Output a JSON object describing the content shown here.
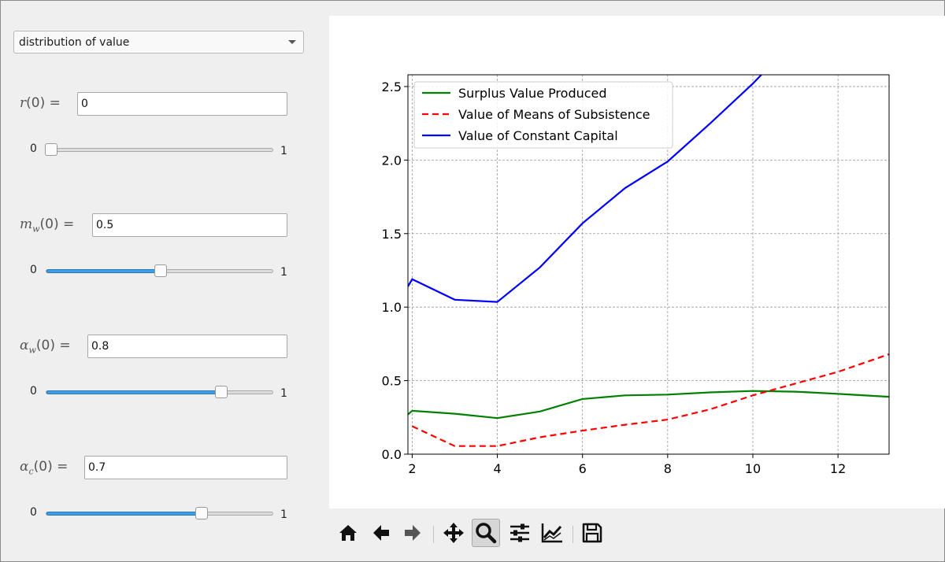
{
  "dropdown": {
    "selected": "distribution of value"
  },
  "params": [
    {
      "sym": "r",
      "sub": "",
      "suffix": "(0) =",
      "value": "0",
      "min": "0",
      "max": "1",
      "level": 0.0
    },
    {
      "sym": "m",
      "sub": "w",
      "suffix": "(0) =",
      "value": "0.5",
      "min": "0",
      "max": "1",
      "level": 0.5
    },
    {
      "sym": "α",
      "sub": "w",
      "suffix": "(0) =",
      "value": "0.8",
      "min": "0",
      "max": "1",
      "level": 0.78
    },
    {
      "sym": "α",
      "sub": "c",
      "suffix": "(0) =",
      "value": "0.7",
      "min": "0",
      "max": "1",
      "level": 0.69
    }
  ],
  "toolbar": {
    "icons": [
      "home-icon",
      "back-arrow-icon",
      "forward-arrow-icon",
      "pan-icon",
      "zoom-icon",
      "configure-subplots-icon",
      "edit-axis-icon",
      "save-icon"
    ],
    "active": "zoom-icon"
  },
  "chart_data": {
    "type": "line",
    "title": "",
    "xlabel": "",
    "ylabel": "",
    "xlim": [
      1.9,
      13.2
    ],
    "ylim": [
      0.0,
      2.58
    ],
    "xticks": [
      2,
      4,
      6,
      8,
      10,
      12
    ],
    "yticks": [
      0.0,
      0.5,
      1.0,
      1.5,
      2.0,
      2.5
    ],
    "xtick_labels": [
      "2",
      "4",
      "6",
      "8",
      "10",
      "12"
    ],
    "ytick_labels": [
      "0.0",
      "0.5",
      "1.0",
      "1.5",
      "2.0",
      "2.5"
    ],
    "grid": true,
    "legend_position": "top-left",
    "series": [
      {
        "name": "Surplus Value Produced",
        "color": "#008000",
        "style": "solid",
        "x": [
          1.9,
          2,
          3,
          4,
          5,
          6,
          7,
          8,
          9,
          10,
          11,
          12,
          13.2
        ],
        "y": [
          0.27,
          0.295,
          0.275,
          0.245,
          0.29,
          0.375,
          0.4,
          0.405,
          0.42,
          0.43,
          0.425,
          0.41,
          0.39
        ]
      },
      {
        "name": "Value of Means of Subsistence",
        "color": "#ff0000",
        "style": "dashed",
        "x": [
          2,
          3,
          4,
          5,
          6,
          7,
          8,
          9,
          10,
          11,
          12,
          13.2
        ],
        "y": [
          0.19,
          0.055,
          0.055,
          0.115,
          0.16,
          0.2,
          0.235,
          0.305,
          0.4,
          0.48,
          0.56,
          0.68
        ]
      },
      {
        "name": "Value of Constant Capital",
        "color": "#0000ff",
        "style": "solid",
        "x": [
          1.9,
          2,
          3,
          4,
          5,
          6,
          7,
          8,
          9,
          10,
          10.2
        ],
        "y": [
          1.14,
          1.19,
          1.05,
          1.035,
          1.27,
          1.57,
          1.81,
          1.99,
          2.25,
          2.52,
          2.58
        ]
      }
    ]
  }
}
